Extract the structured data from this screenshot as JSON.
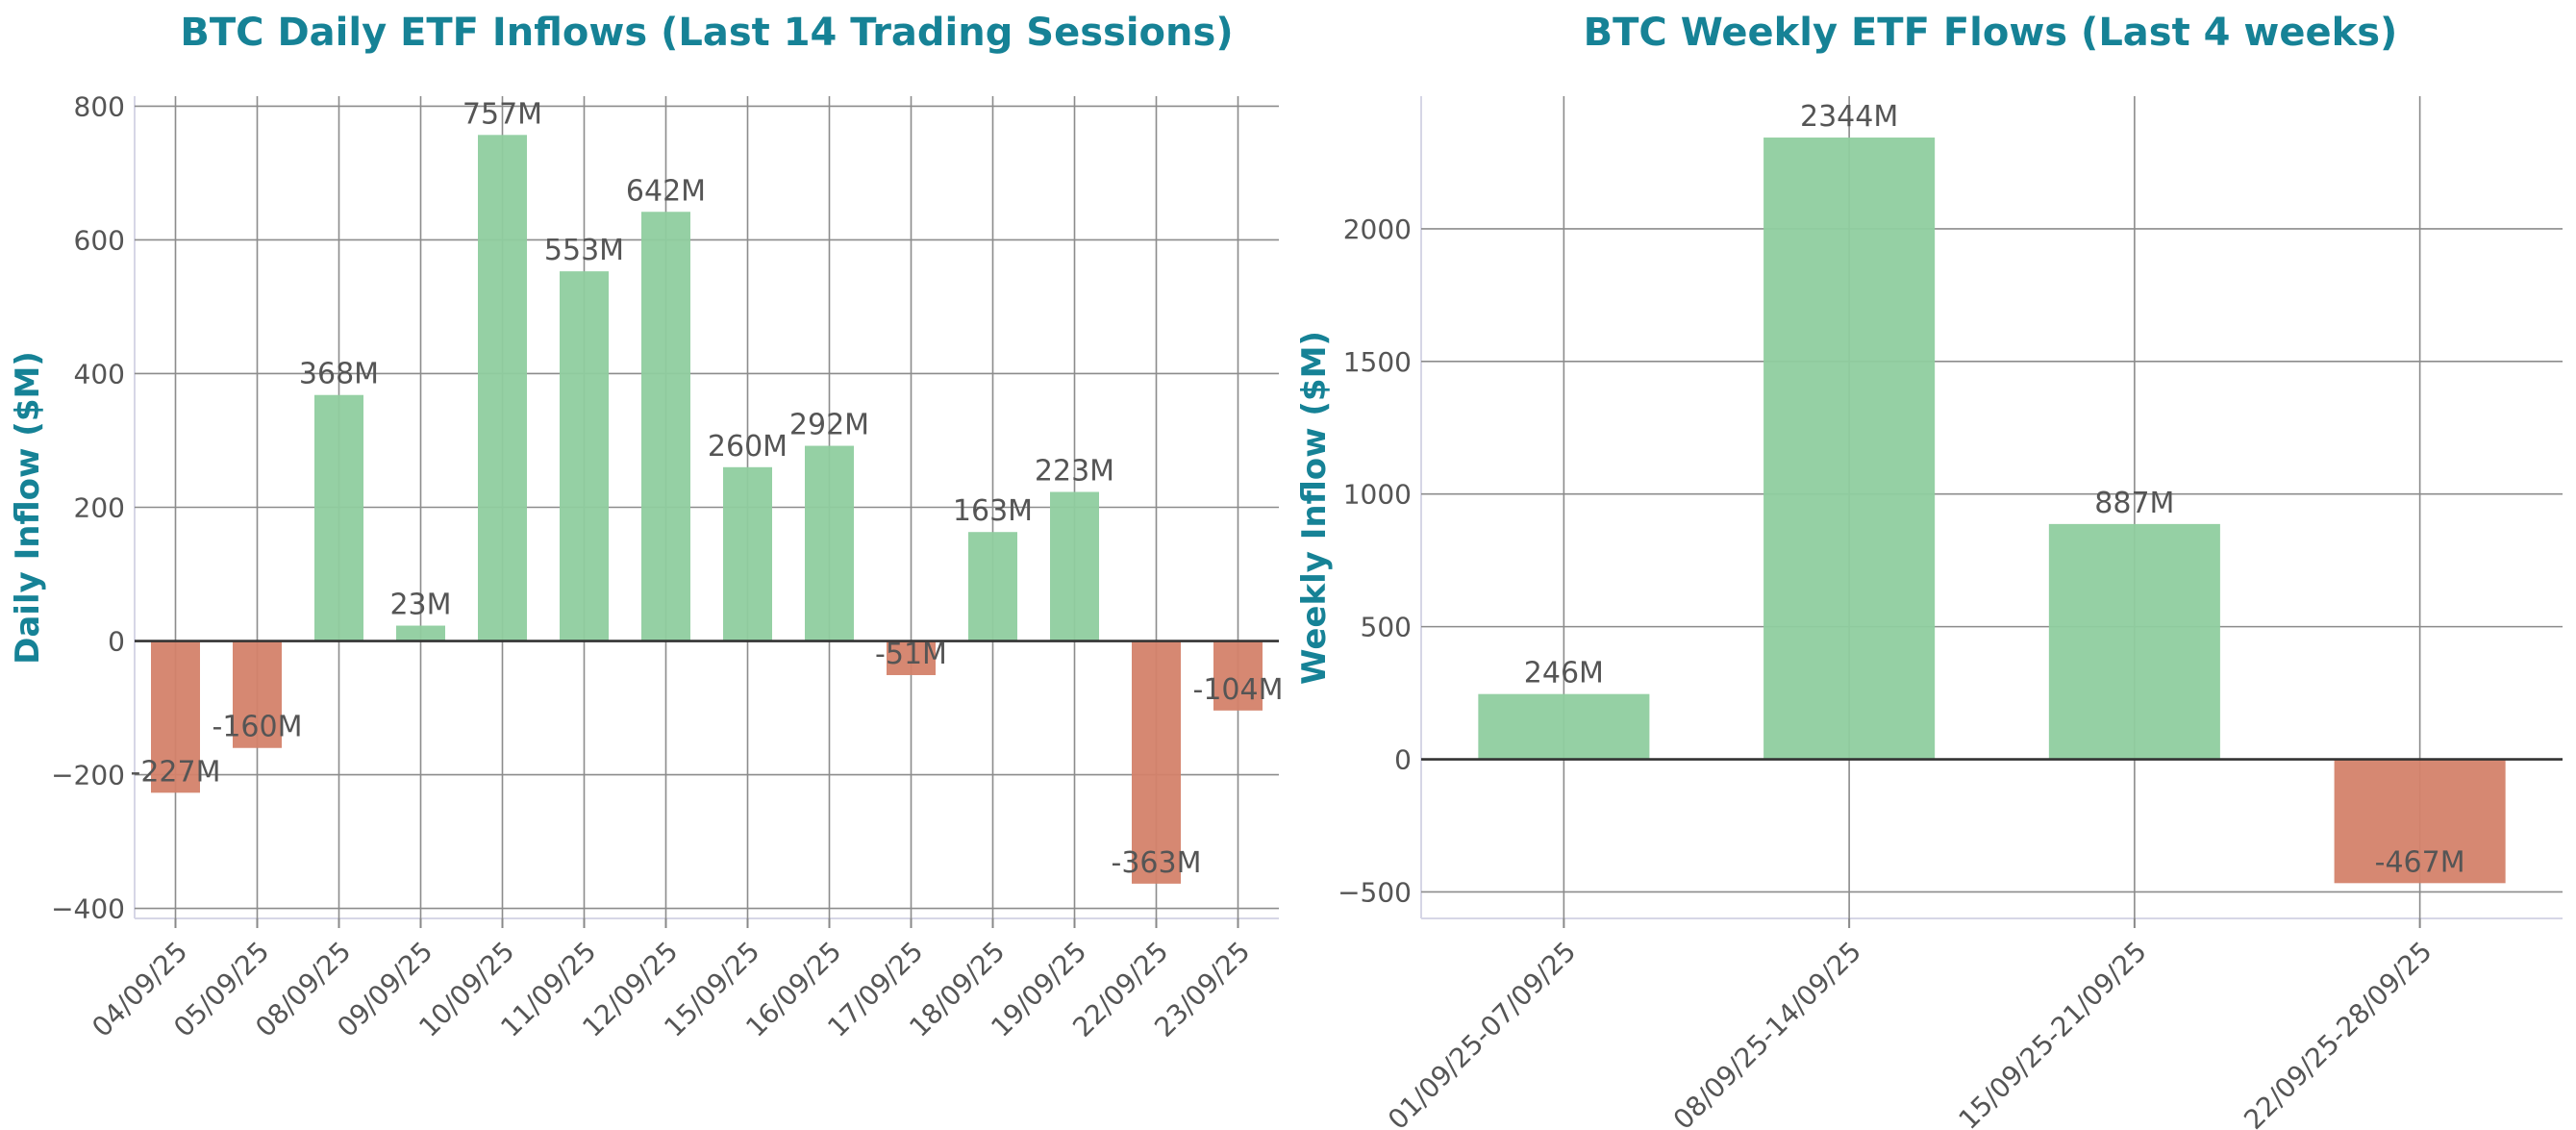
{
  "colors": {
    "positive": "#8fcd9f",
    "negative": "#d4826a",
    "title": "#168296",
    "text": "#555555",
    "grid": "#8c8c8c"
  },
  "chart_data": [
    {
      "type": "bar",
      "title": "BTC Daily ETF Inflows (Last 14 Trading Sessions)",
      "xlabel": "",
      "ylabel": "Daily Inflow ($M)",
      "categories": [
        "04/09/25",
        "05/09/25",
        "08/09/25",
        "09/09/25",
        "10/09/25",
        "11/09/25",
        "12/09/25",
        "15/09/25",
        "16/09/25",
        "17/09/25",
        "18/09/25",
        "19/09/25",
        "22/09/25",
        "23/09/25"
      ],
      "values": [
        -227,
        -160,
        368,
        23,
        757,
        553,
        642,
        260,
        292,
        -51,
        163,
        223,
        -363,
        -104
      ],
      "data_labels": [
        "-227M",
        "-160M",
        "368M",
        "23M",
        "757M",
        "553M",
        "642M",
        "260M",
        "292M",
        "-51M",
        "163M",
        "223M",
        "-363M",
        "-104M"
      ],
      "ylim": [
        -415,
        815
      ],
      "yticks": [
        -400,
        -200,
        0,
        200,
        400,
        600,
        800
      ],
      "ytick_labels": [
        "−400",
        "−200",
        "0",
        "200",
        "400",
        "600",
        "800"
      ],
      "grid": true
    },
    {
      "type": "bar",
      "title": "BTC Weekly ETF Flows (Last 4 weeks)",
      "xlabel": "",
      "ylabel": "Weekly Inflow ($M)",
      "categories": [
        "01/09/25-07/09/25",
        "08/09/25-14/09/25",
        "15/09/25-21/09/25",
        "22/09/25-28/09/25"
      ],
      "values": [
        246,
        2344,
        887,
        -467
      ],
      "data_labels": [
        "246M",
        "2344M",
        "887M",
        "-467M"
      ],
      "ylim": [
        -600,
        2500
      ],
      "yticks": [
        -500,
        0,
        500,
        1000,
        1500,
        2000
      ],
      "ytick_labels": [
        "−500",
        "0",
        "500",
        "1000",
        "1500",
        "2000"
      ],
      "grid": true
    }
  ]
}
